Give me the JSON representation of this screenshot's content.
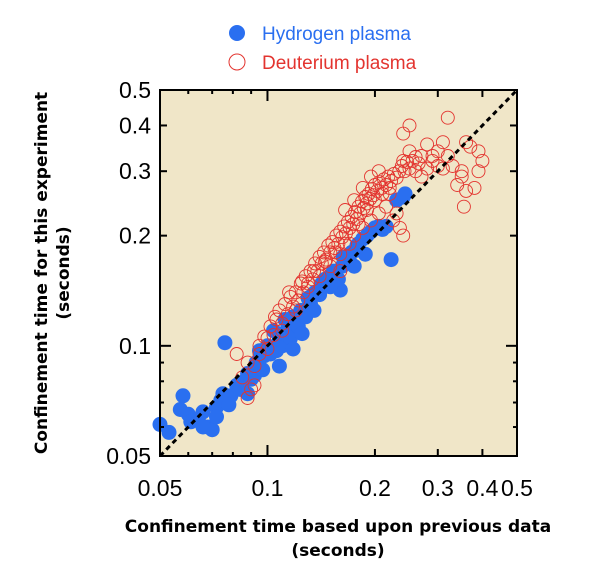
{
  "chart_data": {
    "type": "scatter",
    "xscale": "log",
    "yscale": "log",
    "xlim": [
      0.05,
      0.5
    ],
    "ylim": [
      0.05,
      0.5
    ],
    "grid": false,
    "legend_position": "top-center",
    "xlabel": "Confinement time based upon previous data",
    "xlabel_unit": "(seconds)",
    "ylabel": "Confinement time for this experiment",
    "ylabel_unit": "(seconds)",
    "x_ticks": [
      {
        "value": 0.05,
        "label": "0.05"
      },
      {
        "value": 0.1,
        "label": "0.1"
      },
      {
        "value": 0.2,
        "label": "0.2"
      },
      {
        "value": 0.3,
        "label": "0.3"
      },
      {
        "value": 0.4,
        "label": "0.4"
      },
      {
        "value": 0.5,
        "label": "0.5"
      }
    ],
    "y_ticks": [
      {
        "value": 0.05,
        "label": "0.05"
      },
      {
        "value": 0.1,
        "label": "0.1"
      },
      {
        "value": 0.2,
        "label": "0.2"
      },
      {
        "value": 0.3,
        "label": "0.3"
      },
      {
        "value": 0.4,
        "label": "0.4"
      },
      {
        "value": 0.5,
        "label": "0.5"
      }
    ],
    "reference_line": {
      "style": "dashed",
      "color": "#000000",
      "from": [
        0.05,
        0.05
      ],
      "to": [
        0.5,
        0.5
      ]
    },
    "background_color": "#f0e6c8",
    "series": [
      {
        "name": "Hydrogen plasma",
        "marker": "filled-circle",
        "color": "#2a6ff0",
        "points": [
          [
            0.05,
            0.061
          ],
          [
            0.053,
            0.058
          ],
          [
            0.057,
            0.067
          ],
          [
            0.058,
            0.073
          ],
          [
            0.06,
            0.065
          ],
          [
            0.061,
            0.062
          ],
          [
            0.064,
            0.063
          ],
          [
            0.066,
            0.066
          ],
          [
            0.068,
            0.06
          ],
          [
            0.07,
            0.059
          ],
          [
            0.072,
            0.068
          ],
          [
            0.072,
            0.064
          ],
          [
            0.074,
            0.071
          ],
          [
            0.075,
            0.074
          ],
          [
            0.076,
            0.102
          ],
          [
            0.079,
            0.073
          ],
          [
            0.082,
            0.078
          ],
          [
            0.084,
            0.076
          ],
          [
            0.086,
            0.08
          ],
          [
            0.088,
            0.084
          ],
          [
            0.09,
            0.081
          ],
          [
            0.092,
            0.083
          ],
          [
            0.093,
            0.09
          ],
          [
            0.095,
            0.092
          ],
          [
            0.095,
            0.097
          ],
          [
            0.097,
            0.086
          ],
          [
            0.098,
            0.094
          ],
          [
            0.1,
            0.1
          ],
          [
            0.102,
            0.095
          ],
          [
            0.104,
            0.11
          ],
          [
            0.106,
            0.097
          ],
          [
            0.108,
            0.104
          ],
          [
            0.11,
            0.1
          ],
          [
            0.111,
            0.108
          ],
          [
            0.112,
            0.118
          ],
          [
            0.114,
            0.112
          ],
          [
            0.116,
            0.105
          ],
          [
            0.118,
            0.12
          ],
          [
            0.12,
            0.116
          ],
          [
            0.122,
            0.113
          ],
          [
            0.124,
            0.125
          ],
          [
            0.126,
            0.124
          ],
          [
            0.128,
            0.12
          ],
          [
            0.13,
            0.135
          ],
          [
            0.132,
            0.13
          ],
          [
            0.134,
            0.138
          ],
          [
            0.136,
            0.14
          ],
          [
            0.14,
            0.142
          ],
          [
            0.142,
            0.148
          ],
          [
            0.145,
            0.152
          ],
          [
            0.147,
            0.149
          ],
          [
            0.15,
            0.155
          ],
          [
            0.153,
            0.16
          ],
          [
            0.155,
            0.158
          ],
          [
            0.16,
            0.142
          ],
          [
            0.162,
            0.165
          ],
          [
            0.165,
            0.168
          ],
          [
            0.168,
            0.171
          ],
          [
            0.17,
            0.17
          ],
          [
            0.172,
            0.18
          ],
          [
            0.176,
            0.182
          ],
          [
            0.18,
            0.19
          ],
          [
            0.185,
            0.196
          ],
          [
            0.19,
            0.2
          ],
          [
            0.195,
            0.205
          ],
          [
            0.2,
            0.21
          ],
          [
            0.205,
            0.212
          ],
          [
            0.21,
            0.208
          ],
          [
            0.215,
            0.212
          ],
          [
            0.222,
            0.172
          ],
          [
            0.23,
            0.25
          ],
          [
            0.24,
            0.255
          ],
          [
            0.243,
            0.26
          ],
          [
            0.15,
            0.145
          ],
          [
            0.158,
            0.152
          ],
          [
            0.135,
            0.125
          ],
          [
            0.118,
            0.098
          ],
          [
            0.125,
            0.108
          ],
          [
            0.108,
            0.088
          ],
          [
            0.088,
            0.074
          ],
          [
            0.078,
            0.069
          ],
          [
            0.066,
            0.06
          ],
          [
            0.14,
            0.138
          ],
          [
            0.163,
            0.175
          ],
          [
            0.178,
            0.188
          ],
          [
            0.175,
            0.165
          ],
          [
            0.188,
            0.178
          ]
        ]
      },
      {
        "name": "Deuterium plasma",
        "marker": "open-circle",
        "color": "#e3342f",
        "points": [
          [
            0.082,
            0.095
          ],
          [
            0.085,
            0.082
          ],
          [
            0.088,
            0.09
          ],
          [
            0.09,
            0.076
          ],
          [
            0.092,
            0.088
          ],
          [
            0.095,
            0.1
          ],
          [
            0.098,
            0.106
          ],
          [
            0.1,
            0.098
          ],
          [
            0.102,
            0.113
          ],
          [
            0.104,
            0.107
          ],
          [
            0.106,
            0.118
          ],
          [
            0.108,
            0.125
          ],
          [
            0.11,
            0.115
          ],
          [
            0.112,
            0.13
          ],
          [
            0.114,
            0.122
          ],
          [
            0.116,
            0.136
          ],
          [
            0.118,
            0.128
          ],
          [
            0.12,
            0.14
          ],
          [
            0.122,
            0.133
          ],
          [
            0.124,
            0.148
          ],
          [
            0.126,
            0.14
          ],
          [
            0.128,
            0.155
          ],
          [
            0.13,
            0.148
          ],
          [
            0.132,
            0.16
          ],
          [
            0.134,
            0.152
          ],
          [
            0.136,
            0.168
          ],
          [
            0.138,
            0.16
          ],
          [
            0.14,
            0.175
          ],
          [
            0.142,
            0.168
          ],
          [
            0.144,
            0.18
          ],
          [
            0.146,
            0.172
          ],
          [
            0.148,
            0.188
          ],
          [
            0.15,
            0.18
          ],
          [
            0.152,
            0.192
          ],
          [
            0.154,
            0.185
          ],
          [
            0.156,
            0.2
          ],
          [
            0.158,
            0.19
          ],
          [
            0.16,
            0.205
          ],
          [
            0.162,
            0.198
          ],
          [
            0.164,
            0.212
          ],
          [
            0.166,
            0.203
          ],
          [
            0.168,
            0.218
          ],
          [
            0.17,
            0.21
          ],
          [
            0.172,
            0.225
          ],
          [
            0.174,
            0.215
          ],
          [
            0.176,
            0.232
          ],
          [
            0.178,
            0.222
          ],
          [
            0.18,
            0.24
          ],
          [
            0.182,
            0.23
          ],
          [
            0.184,
            0.248
          ],
          [
            0.186,
            0.238
          ],
          [
            0.188,
            0.255
          ],
          [
            0.19,
            0.245
          ],
          [
            0.192,
            0.26
          ],
          [
            0.194,
            0.252
          ],
          [
            0.196,
            0.268
          ],
          [
            0.198,
            0.258
          ],
          [
            0.2,
            0.275
          ],
          [
            0.203,
            0.265
          ],
          [
            0.206,
            0.28
          ],
          [
            0.209,
            0.27
          ],
          [
            0.212,
            0.285
          ],
          [
            0.215,
            0.275
          ],
          [
            0.218,
            0.29
          ],
          [
            0.222,
            0.282
          ],
          [
            0.226,
            0.295
          ],
          [
            0.23,
            0.288
          ],
          [
            0.234,
            0.3
          ],
          [
            0.238,
            0.31
          ],
          [
            0.242,
            0.3
          ],
          [
            0.246,
            0.318
          ],
          [
            0.25,
            0.305
          ],
          [
            0.255,
            0.32
          ],
          [
            0.26,
            0.328
          ],
          [
            0.265,
            0.315
          ],
          [
            0.27,
            0.33
          ],
          [
            0.28,
            0.305
          ],
          [
            0.29,
            0.32
          ],
          [
            0.3,
            0.34
          ],
          [
            0.32,
            0.33
          ],
          [
            0.33,
            0.31
          ],
          [
            0.35,
            0.3
          ],
          [
            0.37,
            0.35
          ],
          [
            0.39,
            0.34
          ],
          [
            0.4,
            0.32
          ],
          [
            0.36,
            0.36
          ],
          [
            0.31,
            0.36
          ],
          [
            0.34,
            0.275
          ],
          [
            0.355,
            0.24
          ],
          [
            0.31,
            0.305
          ],
          [
            0.24,
            0.38
          ],
          [
            0.25,
            0.34
          ],
          [
            0.28,
            0.355
          ],
          [
            0.32,
            0.42
          ],
          [
            0.25,
            0.4
          ],
          [
            0.38,
            0.27
          ],
          [
            0.36,
            0.265
          ],
          [
            0.35,
            0.29
          ],
          [
            0.39,
            0.3
          ],
          [
            0.22,
            0.26
          ],
          [
            0.23,
            0.23
          ],
          [
            0.235,
            0.21
          ],
          [
            0.24,
            0.2
          ],
          [
            0.225,
            0.22
          ],
          [
            0.215,
            0.24
          ],
          [
            0.205,
            0.23
          ],
          [
            0.195,
            0.22
          ],
          [
            0.185,
            0.21
          ],
          [
            0.175,
            0.2
          ],
          [
            0.165,
            0.19
          ],
          [
            0.155,
            0.18
          ],
          [
            0.145,
            0.17
          ],
          [
            0.135,
            0.16
          ],
          [
            0.125,
            0.15
          ],
          [
            0.115,
            0.14
          ],
          [
            0.105,
            0.12
          ],
          [
            0.095,
            0.095
          ],
          [
            0.092,
            0.078
          ],
          [
            0.088,
            0.072
          ],
          [
            0.17,
            0.19
          ],
          [
            0.16,
            0.178
          ],
          [
            0.18,
            0.215
          ],
          [
            0.19,
            0.235
          ],
          [
            0.2,
            0.25
          ],
          [
            0.21,
            0.26
          ],
          [
            0.22,
            0.27
          ],
          [
            0.16,
            0.16
          ],
          [
            0.14,
            0.155
          ],
          [
            0.13,
            0.145
          ],
          [
            0.15,
            0.165
          ],
          [
            0.12,
            0.125
          ],
          [
            0.11,
            0.11
          ],
          [
            0.1,
            0.105
          ],
          [
            0.185,
            0.27
          ],
          [
            0.195,
            0.29
          ],
          [
            0.205,
            0.3
          ],
          [
            0.175,
            0.25
          ],
          [
            0.165,
            0.235
          ],
          [
            0.24,
            0.32
          ],
          [
            0.26,
            0.3
          ],
          [
            0.27,
            0.29
          ],
          [
            0.29,
            0.33
          ],
          [
            0.3,
            0.31
          ]
        ]
      }
    ]
  }
}
